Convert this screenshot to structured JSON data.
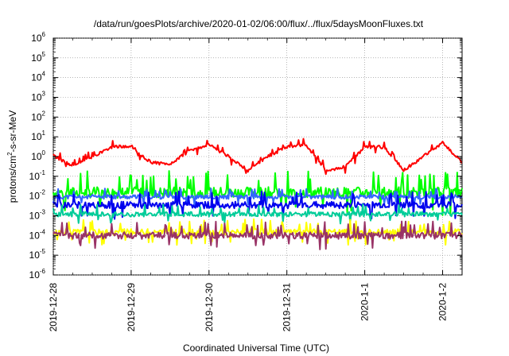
{
  "chart_data": {
    "type": "line",
    "title": "/data/run/goesPlots/archive/2020-01-02/06:00/flux/../flux/5daysMoonFluxes.txt",
    "xlabel": "Coordinated Universal Time (UTC)",
    "ylabel": {
      "pre": "protons/cm",
      "sup": "2",
      "post": "-s-sr-MeV"
    },
    "yscale": "log",
    "ylim": [
      1e-06,
      1000000.0
    ],
    "yticks": [
      {
        "base": "10",
        "exp": "6"
      },
      {
        "base": "10",
        "exp": "5"
      },
      {
        "base": "10",
        "exp": "4"
      },
      {
        "base": "10",
        "exp": "3"
      },
      {
        "base": "10",
        "exp": "2"
      },
      {
        "base": "10",
        "exp": "1"
      },
      {
        "base": "10",
        "exp": "0"
      },
      {
        "base": "10",
        "exp": "-1"
      },
      {
        "base": "10",
        "exp": "-2"
      },
      {
        "base": "10",
        "exp": "-3"
      },
      {
        "base": "10",
        "exp": "-4"
      },
      {
        "base": "10",
        "exp": "-5"
      },
      {
        "base": "10",
        "exp": "-6"
      }
    ],
    "xlim": [
      "2019-12-28T00:00",
      "2020-01-02T06:00"
    ],
    "xticks": [
      "2019-12-28",
      "2019-12-29",
      "2019-12-30",
      "2019-12-31",
      "2020-1-1",
      "2020-1-2"
    ],
    "grid": true,
    "series": [
      {
        "color": "#ff0000",
        "x": [
          "2019-12-28T00:00",
          "2019-12-28T06:00",
          "2019-12-28T12:00",
          "2019-12-28T18:00",
          "2019-12-29T00:00",
          "2019-12-29T06:00",
          "2019-12-29T12:00",
          "2019-12-29T18:00",
          "2019-12-30T00:00",
          "2019-12-30T06:00",
          "2019-12-30T12:00",
          "2019-12-30T18:00",
          "2019-12-31T00:00",
          "2019-12-31T06:00",
          "2019-12-31T12:00",
          "2019-12-31T18:00",
          "2020-01-01T00:00",
          "2020-01-01T06:00",
          "2020-01-01T12:00",
          "2020-01-01T18:00",
          "2020-01-02T00:00",
          "2020-01-02T06:00"
        ],
        "y": [
          1.2,
          0.3,
          1.0,
          3.0,
          3.5,
          0.5,
          0.4,
          2.0,
          4.0,
          1.0,
          0.2,
          1.0,
          3.0,
          4.0,
          0.2,
          0.3,
          3.0,
          3.0,
          0.2,
          1.0,
          5.0,
          0.5
        ],
        "noise": 0.45
      },
      {
        "color": "#00ff00",
        "x": [
          "2019-12-28T00:00",
          "2020-01-02T06:00"
        ],
        "y": [
          0.015,
          0.015
        ],
        "noise": 1.6,
        "seed": 7
      },
      {
        "color": "#3366ff",
        "x": [
          "2019-12-28T00:00",
          "2020-01-02T06:00"
        ],
        "y": [
          0.009,
          0.009
        ],
        "noise": 0.6,
        "seed": 11
      },
      {
        "color": "#0000ee",
        "x": [
          "2019-12-28T00:00",
          "2020-01-02T06:00"
        ],
        "y": [
          0.0035,
          0.0035
        ],
        "noise": 1.0,
        "seed": 19
      },
      {
        "color": "#00cc99",
        "x": [
          "2019-12-28T00:00",
          "2020-01-02T06:00"
        ],
        "y": [
          0.0012,
          0.0012
        ],
        "noise": 0.7,
        "seed": 23
      },
      {
        "color": "#ffff00",
        "x": [
          "2019-12-28T00:00",
          "2020-01-02T06:00"
        ],
        "y": [
          0.00015,
          0.00015
        ],
        "noise": 0.9,
        "seed": 31
      },
      {
        "color": "#993366",
        "x": [
          "2019-12-28T00:00",
          "2020-01-02T06:00"
        ],
        "y": [
          0.0001,
          0.0001
        ],
        "noise": 1.0,
        "seed": 37
      }
    ]
  }
}
